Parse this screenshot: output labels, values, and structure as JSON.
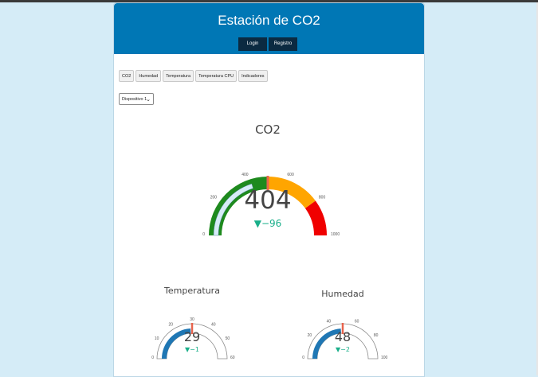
{
  "header": {
    "title": "Estación de CO2"
  },
  "auth": {
    "login_label": "Login",
    "register_label": "Registro"
  },
  "tabs": [
    "CO2",
    "Humedad",
    "Temperatura",
    "Temperatura CPU",
    "Indicadores"
  ],
  "device_select": {
    "selected": "Dispositivo 1"
  },
  "colors": {
    "header": "#0077b5",
    "auth_button": "#0b2a41",
    "green": "#1e8a1e",
    "orange": "#ffa500",
    "red": "#f00000",
    "blue": "#1f77b4",
    "delta": "#1aaf8a",
    "needle": "#e8644d"
  },
  "gauges": {
    "co2": {
      "title": "CO2",
      "value": "404",
      "delta": "▼−96",
      "value_num": 404,
      "reference": 500,
      "range": [
        0,
        1000
      ],
      "ticks": [
        "0",
        "200",
        "400",
        "600",
        "800",
        "1000"
      ],
      "steps": [
        {
          "from": 0,
          "to": 500,
          "color": "green"
        },
        {
          "from": 500,
          "to": 800,
          "color": "orange"
        },
        {
          "from": 800,
          "to": 1000,
          "color": "red"
        }
      ]
    },
    "temperatura": {
      "title": "Temperatura",
      "value": "29",
      "delta": "▼−1",
      "value_num": 29,
      "reference": 30,
      "range": [
        0,
        60
      ],
      "ticks": [
        "0",
        "10",
        "20",
        "30",
        "40",
        "50",
        "60"
      ]
    },
    "humedad": {
      "title": "Humedad",
      "value": "48",
      "delta": "▼−2",
      "value_num": 48,
      "reference": 50,
      "range": [
        0,
        100
      ],
      "ticks": [
        "0",
        "20",
        "40",
        "60",
        "80",
        "100"
      ]
    }
  }
}
